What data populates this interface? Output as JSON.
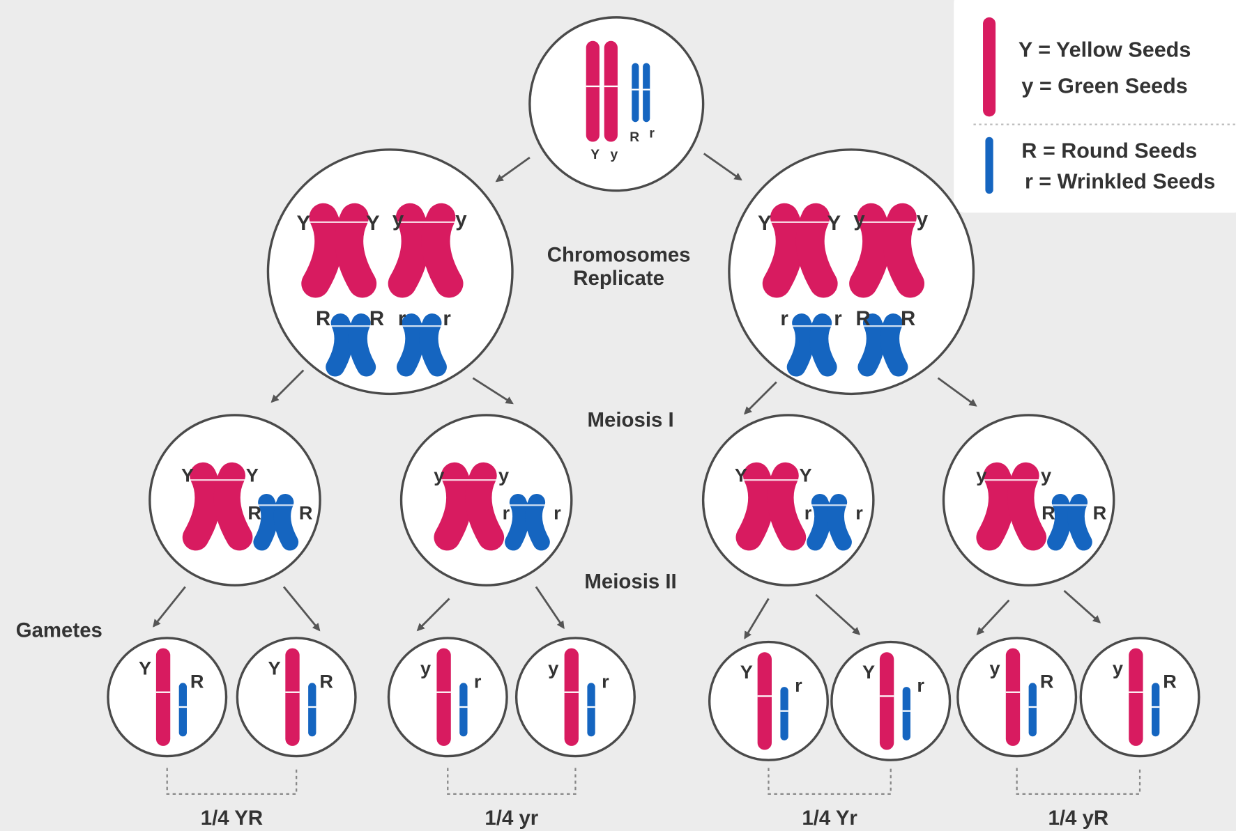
{
  "legend": {
    "items": [
      "Y = Yellow Seeds",
      "y = Green Seeds",
      "R = Round Seeds",
      "r = Wrinkled Seeds"
    ]
  },
  "stages": {
    "replicate": [
      "Chromosomes",
      "Replicate"
    ],
    "meiosis_1": "Meiosis I",
    "meiosis_2": "Meiosis II",
    "gametes": "Gametes"
  },
  "parent": {
    "alleles": [
      "Y",
      "y",
      "R",
      "r"
    ]
  },
  "replicated": [
    {
      "alleles": [
        "Y",
        "Y",
        "y",
        "y",
        "R",
        "R",
        "r",
        "r"
      ]
    },
    {
      "alleles": [
        "Y",
        "Y",
        "y",
        "y",
        "r",
        "r",
        "R",
        "R"
      ]
    }
  ],
  "meiosis_1": [
    {
      "alleles": [
        "Y",
        "Y",
        "R",
        "R"
      ]
    },
    {
      "alleles": [
        "y",
        "y",
        "r",
        "r"
      ]
    },
    {
      "alleles": [
        "Y",
        "Y",
        "r",
        "r"
      ]
    },
    {
      "alleles": [
        "y",
        "y",
        "R",
        "R"
      ]
    }
  ],
  "gametes": [
    {
      "alleles": [
        "Y",
        "R"
      ]
    },
    {
      "alleles": [
        "Y",
        "R"
      ]
    },
    {
      "alleles": [
        "y",
        "r"
      ]
    },
    {
      "alleles": [
        "y",
        "r"
      ]
    },
    {
      "alleles": [
        "Y",
        "r"
      ]
    },
    {
      "alleles": [
        "Y",
        "r"
      ]
    },
    {
      "alleles": [
        "y",
        "R"
      ]
    },
    {
      "alleles": [
        "y",
        "R"
      ]
    }
  ],
  "results": [
    "1/4 YR",
    "1/4 yr",
    "1/4 Yr",
    "1/4 yR"
  ]
}
